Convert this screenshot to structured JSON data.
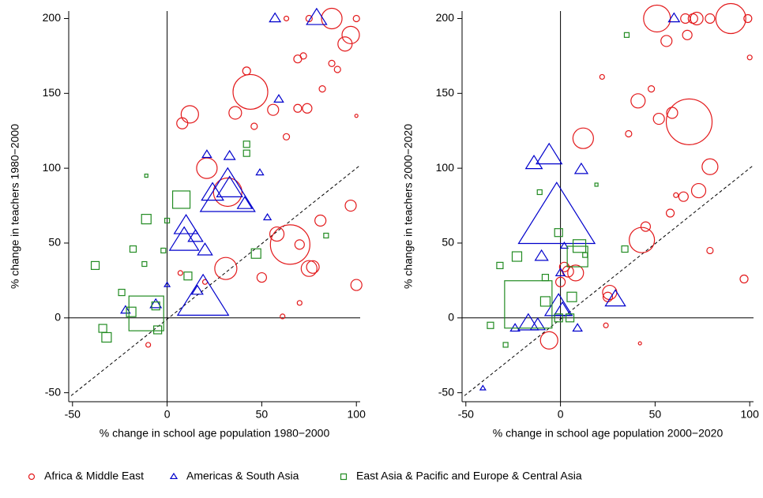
{
  "chart_data": [
    {
      "type": "scatter",
      "xlabel": "% change in school age population 1980−2000",
      "ylabel": "% change in teachers 1980−2000",
      "xlim": [
        -52,
        102
      ],
      "ylim": [
        -56,
        205
      ],
      "xticks": [
        -50,
        0,
        50,
        100
      ],
      "yticks": [
        -50,
        0,
        50,
        100,
        150,
        200
      ],
      "zero_lines": true,
      "diagonal": true,
      "series": [
        {
          "marker": "circle",
          "color": "#e31a1c",
          "x": [
            87,
            100,
            97,
            94,
            44,
            42,
            36,
            12,
            8,
            21,
            32,
            31,
            50,
            65,
            58,
            70,
            75,
            77,
            81,
            97,
            100,
            56,
            69,
            74,
            63,
            46,
            82,
            69,
            72,
            87,
            90,
            75,
            63,
            61,
            70,
            -10,
            7,
            100,
            20
          ],
          "y": [
            200,
            200,
            189,
            183,
            151,
            165,
            137,
            136,
            130,
            100,
            84,
            33,
            27,
            49,
            56,
            49,
            33,
            34,
            65,
            75,
            22,
            139,
            140,
            140,
            121,
            128,
            153,
            173,
            175,
            170,
            166,
            200,
            200,
            1,
            10,
            -18,
            30,
            135,
            24
          ],
          "sizes": [
            13,
            4,
            11,
            9,
            22,
            5,
            8,
            11,
            7,
            13,
            18,
            14,
            6,
            25,
            9,
            6,
            10,
            8,
            7,
            7,
            7,
            7,
            5,
            6,
            4,
            4,
            4,
            5,
            4,
            4,
            4,
            4,
            3,
            3,
            3,
            3,
            3,
            2,
            3
          ]
        },
        {
          "marker": "triangle",
          "color": "#0000cc",
          "x": [
            79,
            57,
            33,
            32,
            10,
            9,
            15,
            20,
            19,
            24,
            21,
            33,
            59,
            49,
            53,
            41,
            16,
            -22,
            -6,
            0
          ],
          "y": [
            200,
            200,
            86,
            82,
            61,
            51,
            54,
            45,
            12,
            83,
            109,
            108,
            146,
            97,
            67,
            76,
            18,
            5,
            9,
            22
          ],
          "sizes": [
            11,
            6,
            14,
            30,
            13,
            16,
            8,
            8,
            28,
            12,
            5,
            6,
            5,
            4,
            4,
            8,
            6,
            5,
            6,
            3
          ]
        },
        {
          "marker": "square",
          "color": "#228b22",
          "x": [
            -11,
            7.5,
            -11,
            -19,
            -32,
            -34,
            -38,
            47,
            -6,
            -5,
            11,
            42,
            42,
            -18,
            -24,
            -12,
            84,
            0,
            -2,
            -11
          ],
          "y": [
            3,
            79,
            66,
            4,
            -13,
            -7,
            35,
            43,
            8,
            -8,
            28,
            116,
            110,
            46,
            17,
            36,
            55,
            65,
            45,
            95
          ],
          "sizes": [
            22,
            11,
            6,
            6,
            6,
            5,
            5,
            6,
            5,
            5,
            5,
            4,
            4,
            4,
            4,
            3,
            3,
            3,
            3,
            2
          ]
        }
      ]
    },
    {
      "type": "scatter",
      "xlabel": "% change in school age population 2000−2020",
      "ylabel": "% change in teachers 2000−2020",
      "xlim": [
        -52,
        102
      ],
      "ylim": [
        -56,
        205
      ],
      "xticks": [
        -50,
        0,
        50,
        100
      ],
      "yticks": [
        -50,
        0,
        50,
        100,
        150,
        200
      ],
      "zero_lines": true,
      "diagonal": true,
      "series": [
        {
          "marker": "circle",
          "color": "#e31a1c",
          "x": [
            51,
            90,
            68,
            12,
            41,
            52,
            59,
            79,
            73,
            43,
            8,
            4,
            -6,
            26,
            25,
            58,
            65,
            45,
            56,
            67,
            72,
            66,
            70,
            79,
            99,
            100,
            48,
            36,
            22,
            0,
            79,
            97,
            61,
            2,
            24,
            42
          ],
          "y": [
            200,
            200,
            131,
            120,
            145,
            133,
            137,
            101,
            85,
            52,
            30,
            31,
            -15,
            17,
            14,
            70,
            81,
            61,
            185,
            189,
            200,
            200,
            200,
            200,
            200,
            174,
            153,
            123,
            161,
            24,
            45,
            26,
            82,
            34,
            -5,
            -17
          ],
          "sizes": [
            17,
            19,
            29,
            13,
            9,
            7,
            7,
            10,
            9,
            16,
            10,
            7,
            11,
            9,
            6,
            5,
            6,
            6,
            7,
            6,
            8,
            6,
            6,
            6,
            5,
            3,
            4,
            4,
            3,
            6,
            4,
            5,
            3,
            6,
            3,
            2
          ]
        },
        {
          "marker": "triangle",
          "color": "#0000cc",
          "x": [
            -2,
            -6,
            -14,
            11,
            29,
            -1,
            1,
            -17,
            -12,
            -10,
            -24,
            9,
            60,
            0,
            -41,
            2
          ],
          "y": [
            65,
            108,
            103,
            99,
            12,
            7,
            5,
            -4,
            -5,
            41,
            -7,
            -7,
            200,
            30,
            -47,
            48
          ],
          "sizes": [
            42,
            14,
            9,
            7,
            11,
            15,
            9,
            11,
            8,
            7,
            5,
            5,
            6,
            5,
            3,
            4
          ]
        },
        {
          "marker": "square",
          "color": "#228b22",
          "x": [
            -17,
            9,
            10,
            -23,
            -1,
            -8,
            6,
            5,
            -1,
            -32,
            -37,
            34,
            35,
            -11,
            -8,
            -29,
            13,
            19
          ],
          "y": [
            9,
            41,
            48,
            41,
            57,
            11,
            14,
            0,
            0,
            35,
            -5,
            46,
            189,
            84,
            27,
            -18,
            42,
            89
          ],
          "sizes": [
            30,
            13,
            8,
            6,
            5,
            6,
            6,
            5,
            5,
            4,
            4,
            4,
            3,
            3,
            4,
            3,
            3,
            2
          ]
        }
      ]
    }
  ],
  "legend": [
    {
      "name": "Africa & Middle East",
      "color": "#e31a1c",
      "marker": "circle"
    },
    {
      "name": "Americas & South Asia",
      "color": "#0000cc",
      "marker": "triangle"
    },
    {
      "name": "East Asia & Pacific and Europe & Central Asia",
      "color": "#228b22",
      "marker": "square"
    }
  ]
}
